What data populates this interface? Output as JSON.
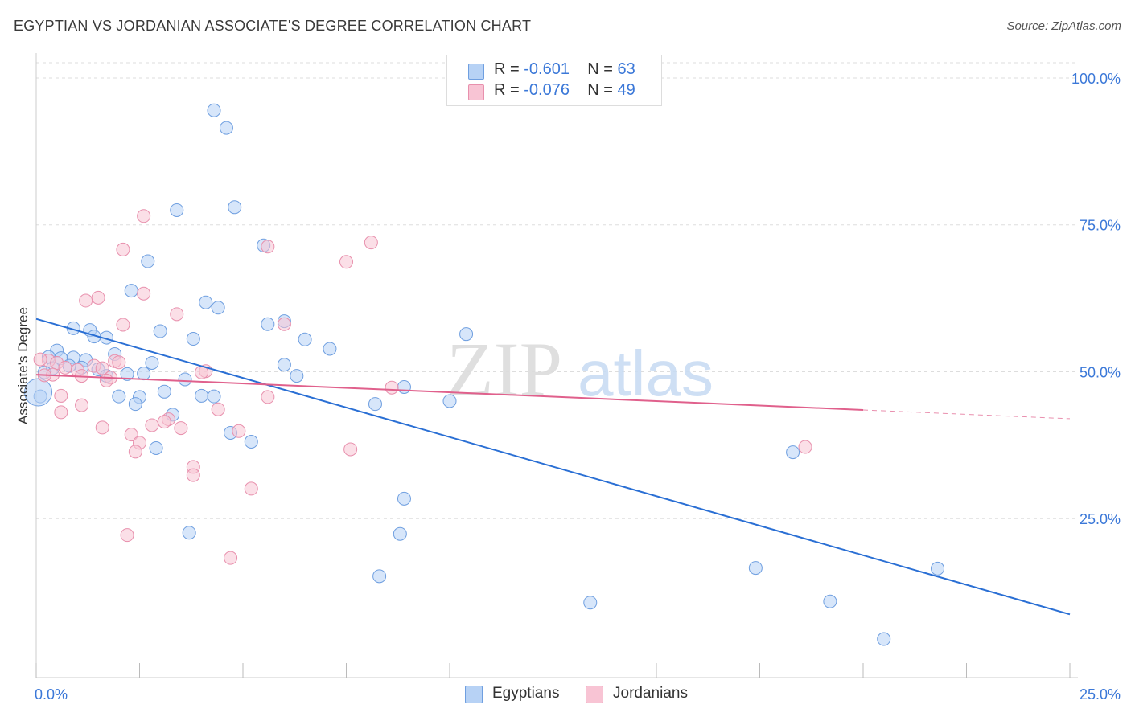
{
  "header": {
    "title": "EGYPTIAN VS JORDANIAN ASSOCIATE'S DEGREE CORRELATION CHART",
    "source": "Source: ZipAtlas.com"
  },
  "legend": {
    "rows": [
      {
        "r_label": "R =",
        "r_value": "-0.601",
        "n_label": "N =",
        "n_value": "63"
      },
      {
        "r_label": "R =",
        "r_value": "-0.076",
        "n_label": "N =",
        "n_value": "49"
      }
    ]
  },
  "watermark": {
    "zip": "ZIP",
    "atlas": "atlas"
  },
  "colors": {
    "egyptians_fill": "#b7d2f5",
    "egyptians_stroke": "#6f9fe0",
    "egyptians_line": "#2a6fd4",
    "jordanians_fill": "#f8c4d4",
    "jordanians_stroke": "#e890ad",
    "jordanians_line": "#e0608c",
    "tick_label": "#3b78d8",
    "grid": "#dddddd"
  },
  "chart_data": {
    "type": "scatter",
    "title": "EGYPTIAN VS JORDANIAN ASSOCIATE'S DEGREE CORRELATION CHART",
    "xlabel": "",
    "ylabel": "Associate's Degree",
    "xlim": [
      0,
      25
    ],
    "ylim": [
      0,
      105
    ],
    "x_tick_labels": [
      {
        "x": 0,
        "label": "0.0%"
      },
      {
        "x": 25,
        "label": "25.0%"
      }
    ],
    "y_tick_labels": [
      {
        "y": 100,
        "label": "100.0%"
      },
      {
        "y": 75,
        "label": "75.0%"
      },
      {
        "y": 50,
        "label": "50.0%"
      },
      {
        "y": 25,
        "label": "25.0%"
      }
    ],
    "grid": true,
    "legend_position": "bottom-center",
    "series": [
      {
        "name": "Egyptians",
        "trend": {
          "x": [
            0,
            25
          ],
          "y": [
            59.0,
            8.7
          ],
          "dashed_from": null
        },
        "points": [
          {
            "x": 4.3,
            "y": 94.5
          },
          {
            "x": 4.6,
            "y": 91.5
          },
          {
            "x": 3.4,
            "y": 77.5
          },
          {
            "x": 4.8,
            "y": 78.0
          },
          {
            "x": 5.5,
            "y": 71.5
          },
          {
            "x": 2.7,
            "y": 68.8
          },
          {
            "x": 2.3,
            "y": 63.8
          },
          {
            "x": 4.1,
            "y": 61.8
          },
          {
            "x": 4.4,
            "y": 60.9
          },
          {
            "x": 6.0,
            "y": 58.6
          },
          {
            "x": 5.6,
            "y": 58.1
          },
          {
            "x": 0.9,
            "y": 57.4
          },
          {
            "x": 1.3,
            "y": 57.1
          },
          {
            "x": 3.0,
            "y": 56.9
          },
          {
            "x": 1.4,
            "y": 56.0
          },
          {
            "x": 1.7,
            "y": 55.8
          },
          {
            "x": 3.8,
            "y": 55.6
          },
          {
            "x": 6.5,
            "y": 55.5
          },
          {
            "x": 10.4,
            "y": 56.4
          },
          {
            "x": 7.1,
            "y": 53.9
          },
          {
            "x": 0.5,
            "y": 53.6
          },
          {
            "x": 1.9,
            "y": 53.0
          },
          {
            "x": 0.3,
            "y": 52.5
          },
          {
            "x": 0.6,
            "y": 52.3
          },
          {
            "x": 0.9,
            "y": 52.4
          },
          {
            "x": 1.2,
            "y": 52.0
          },
          {
            "x": 2.8,
            "y": 51.5
          },
          {
            "x": 6.0,
            "y": 51.2
          },
          {
            "x": 0.8,
            "y": 51.0
          },
          {
            "x": 1.1,
            "y": 50.7
          },
          {
            "x": 1.5,
            "y": 50.4
          },
          {
            "x": 0.4,
            "y": 50.6
          },
          {
            "x": 0.2,
            "y": 49.9
          },
          {
            "x": 2.2,
            "y": 49.6
          },
          {
            "x": 2.6,
            "y": 49.7
          },
          {
            "x": 1.7,
            "y": 49.3
          },
          {
            "x": 6.3,
            "y": 49.3
          },
          {
            "x": 3.6,
            "y": 48.7
          },
          {
            "x": 8.9,
            "y": 47.4
          },
          {
            "x": 3.1,
            "y": 46.6
          },
          {
            "x": 2.0,
            "y": 45.8
          },
          {
            "x": 2.5,
            "y": 45.7
          },
          {
            "x": 4.0,
            "y": 45.9
          },
          {
            "x": 4.3,
            "y": 45.8
          },
          {
            "x": 10.0,
            "y": 45.0
          },
          {
            "x": 2.4,
            "y": 44.5
          },
          {
            "x": 8.2,
            "y": 44.5
          },
          {
            "x": 3.3,
            "y": 42.7
          },
          {
            "x": 0.1,
            "y": 45.8
          },
          {
            "x": 4.7,
            "y": 39.6
          },
          {
            "x": 5.2,
            "y": 38.1
          },
          {
            "x": 2.9,
            "y": 37.0
          },
          {
            "x": 18.3,
            "y": 36.3
          },
          {
            "x": 8.9,
            "y": 28.4
          },
          {
            "x": 3.7,
            "y": 22.6
          },
          {
            "x": 8.8,
            "y": 22.4
          },
          {
            "x": 8.3,
            "y": 15.2
          },
          {
            "x": 17.4,
            "y": 16.6
          },
          {
            "x": 21.8,
            "y": 16.5
          },
          {
            "x": 13.4,
            "y": 10.7
          },
          {
            "x": 19.2,
            "y": 10.9
          },
          {
            "x": 20.5,
            "y": 4.5
          },
          {
            "x": 0.05,
            "y": 46.5
          }
        ]
      },
      {
        "name": "Jordanians",
        "trend": {
          "x": [
            0,
            25
          ],
          "y": [
            49.5,
            42.0
          ],
          "dashed_from": 20.0
        },
        "points": [
          {
            "x": 2.6,
            "y": 76.5
          },
          {
            "x": 8.1,
            "y": 72.0
          },
          {
            "x": 5.6,
            "y": 71.3
          },
          {
            "x": 2.1,
            "y": 70.8
          },
          {
            "x": 7.5,
            "y": 68.7
          },
          {
            "x": 2.6,
            "y": 63.3
          },
          {
            "x": 1.5,
            "y": 62.6
          },
          {
            "x": 1.2,
            "y": 62.1
          },
          {
            "x": 3.4,
            "y": 59.8
          },
          {
            "x": 2.1,
            "y": 58.0
          },
          {
            "x": 6.0,
            "y": 58.1
          },
          {
            "x": 0.3,
            "y": 51.9
          },
          {
            "x": 0.5,
            "y": 51.5
          },
          {
            "x": 1.9,
            "y": 51.8
          },
          {
            "x": 1.4,
            "y": 51.0
          },
          {
            "x": 0.7,
            "y": 50.7
          },
          {
            "x": 1.0,
            "y": 50.3
          },
          {
            "x": 1.6,
            "y": 50.6
          },
          {
            "x": 4.1,
            "y": 50.1
          },
          {
            "x": 0.4,
            "y": 49.5
          },
          {
            "x": 1.1,
            "y": 49.3
          },
          {
            "x": 0.2,
            "y": 49.4
          },
          {
            "x": 1.8,
            "y": 49.0
          },
          {
            "x": 1.7,
            "y": 48.5
          },
          {
            "x": 8.6,
            "y": 47.3
          },
          {
            "x": 0.6,
            "y": 45.9
          },
          {
            "x": 5.6,
            "y": 45.7
          },
          {
            "x": 1.1,
            "y": 44.3
          },
          {
            "x": 4.4,
            "y": 43.6
          },
          {
            "x": 0.6,
            "y": 43.1
          },
          {
            "x": 3.2,
            "y": 41.9
          },
          {
            "x": 3.1,
            "y": 41.5
          },
          {
            "x": 2.8,
            "y": 40.9
          },
          {
            "x": 1.6,
            "y": 40.5
          },
          {
            "x": 3.5,
            "y": 40.4
          },
          {
            "x": 4.9,
            "y": 39.9
          },
          {
            "x": 2.3,
            "y": 39.3
          },
          {
            "x": 2.5,
            "y": 37.9
          },
          {
            "x": 7.6,
            "y": 36.8
          },
          {
            "x": 2.4,
            "y": 36.4
          },
          {
            "x": 18.6,
            "y": 37.2
          },
          {
            "x": 3.8,
            "y": 33.8
          },
          {
            "x": 3.8,
            "y": 32.4
          },
          {
            "x": 5.2,
            "y": 30.1
          },
          {
            "x": 2.2,
            "y": 22.2
          },
          {
            "x": 4.7,
            "y": 18.3
          },
          {
            "x": 0.1,
            "y": 52.1
          },
          {
            "x": 2.0,
            "y": 51.6
          },
          {
            "x": 4.0,
            "y": 49.9
          }
        ]
      }
    ]
  }
}
